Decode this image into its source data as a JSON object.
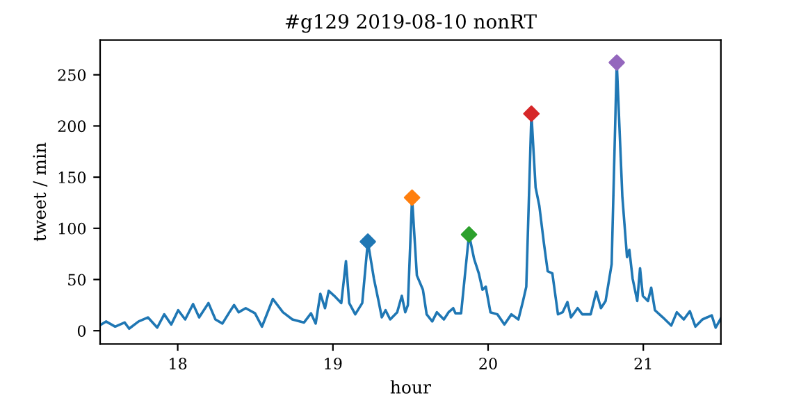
{
  "chart_data": {
    "type": "line",
    "title": "#g129 2019-08-10 nonRT",
    "xlabel": "hour",
    "ylabel": "tweet / min",
    "xlim": [
      17.5,
      21.5
    ],
    "xticks": [
      18,
      19,
      20,
      21
    ],
    "ylim": [
      -13,
      284
    ],
    "yticks": [
      0,
      50,
      100,
      150,
      200,
      250
    ],
    "grid": false,
    "series": [
      {
        "color": "#1f77b4",
        "marker": "none",
        "line_style": "solid",
        "x": [
          17.507,
          17.538,
          17.597,
          17.658,
          17.687,
          17.748,
          17.808,
          17.868,
          17.913,
          17.958,
          18.003,
          18.048,
          18.099,
          18.138,
          18.198,
          18.243,
          18.288,
          18.333,
          18.363,
          18.393,
          18.438,
          18.498,
          18.543,
          18.613,
          18.678,
          18.739,
          18.814,
          18.859,
          18.889,
          18.919,
          18.949,
          18.973,
          19.009,
          19.054,
          19.084,
          19.105,
          19.144,
          19.189,
          19.225,
          19.264,
          19.294,
          19.315,
          19.339,
          19.369,
          19.414,
          19.444,
          19.466,
          19.483,
          19.51,
          19.541,
          19.58,
          19.604,
          19.64,
          19.67,
          19.715,
          19.745,
          19.775,
          19.79,
          19.826,
          19.877,
          19.91,
          19.94,
          19.964,
          19.985,
          20.015,
          20.06,
          20.105,
          20.15,
          20.195,
          20.225,
          20.246,
          20.279,
          20.306,
          20.33,
          20.36,
          20.384,
          20.414,
          20.45,
          20.48,
          20.511,
          20.534,
          20.577,
          20.607,
          20.661,
          20.697,
          20.727,
          20.757,
          20.796,
          20.829,
          20.865,
          20.895,
          20.91,
          20.931,
          20.961,
          20.979,
          20.997,
          21.03,
          21.051,
          21.075,
          21.126,
          21.18,
          21.216,
          21.261,
          21.3,
          21.336,
          21.381,
          21.441,
          21.466,
          21.5
        ],
        "values": [
          6,
          9,
          4,
          8,
          2,
          9,
          13,
          3,
          16,
          6,
          20,
          11,
          26,
          13,
          27,
          11,
          7,
          18,
          25,
          18,
          22,
          17,
          4,
          31,
          18,
          11,
          8,
          17,
          7,
          36,
          22,
          39,
          34,
          27,
          68,
          27,
          16,
          27,
          87,
          51,
          29,
          13,
          20,
          11,
          18,
          34,
          18,
          25,
          130,
          54,
          40,
          16,
          9,
          18,
          11,
          18,
          22,
          17,
          17,
          94,
          70,
          56,
          40,
          43,
          18,
          16,
          6,
          16,
          11,
          29,
          43,
          212,
          140,
          122,
          85,
          58,
          56,
          16,
          18,
          28,
          13,
          22,
          16,
          16,
          38,
          22,
          29,
          65,
          262,
          131,
          72,
          79,
          51,
          29,
          61,
          34,
          29,
          42,
          20,
          13,
          5,
          18,
          11,
          19,
          4,
          11,
          15,
          3,
          12
        ]
      },
      {
        "type": "scatter",
        "color": "#1f77b4",
        "marker": "diamond",
        "x": [
          19.225
        ],
        "values": [
          87
        ]
      },
      {
        "type": "scatter",
        "color": "#ff7f0e",
        "marker": "diamond",
        "x": [
          19.51
        ],
        "values": [
          130
        ]
      },
      {
        "type": "scatter",
        "color": "#2ca02c",
        "marker": "diamond",
        "x": [
          19.877
        ],
        "values": [
          94
        ]
      },
      {
        "type": "scatter",
        "color": "#d62728",
        "marker": "diamond",
        "x": [
          20.279
        ],
        "values": [
          212
        ]
      },
      {
        "type": "scatter",
        "color": "#9467bd",
        "marker": "diamond",
        "x": [
          20.829
        ],
        "values": [
          262
        ]
      }
    ]
  }
}
